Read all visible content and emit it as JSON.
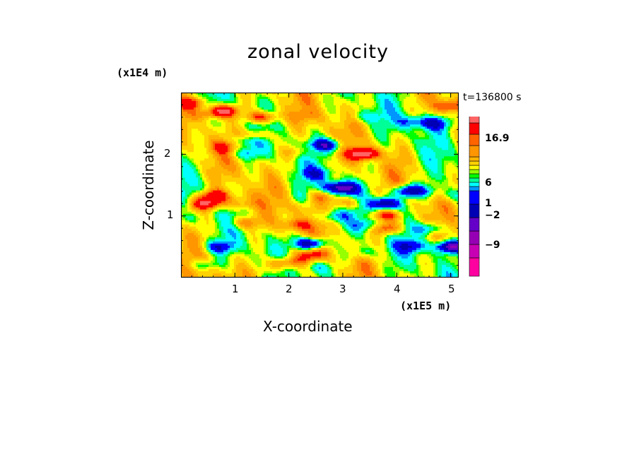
{
  "chart_data": {
    "type": "heatmap",
    "title": "zonal velocity",
    "xlabel": "X-coordinate",
    "ylabel": "Z-coordinate",
    "x_unit": "(x1E5 m)",
    "y_unit": "(x1E4 m)",
    "time_label": "t=136800 s",
    "xlim": [
      0,
      5.15
    ],
    "ylim": [
      0,
      3.0
    ],
    "x_ticks": [
      "1",
      "2",
      "3",
      "4",
      "5"
    ],
    "y_ticks": [
      "1",
      "2"
    ],
    "colorbar": {
      "tick_labels": [
        "16.9",
        "6",
        "1",
        "−2",
        "−9"
      ],
      "colors": [
        "#ff00a0",
        "#c800b4",
        "#9600b4",
        "#6400c8",
        "#0000b4",
        "#0000ff",
        "#0096ff",
        "#00ffff",
        "#00ff96",
        "#00ff00",
        "#96ff00",
        "#ffff00",
        "#ffd200",
        "#ffb400",
        "#ff9600",
        "#ff6400",
        "#ff0000",
        "#ff6464",
        "#ff9696",
        "#ffc8c8"
      ]
    },
    "features": [
      {
        "x": 0.45,
        "z": 1.2,
        "v": 8
      },
      {
        "x": 0.8,
        "z": 2.7,
        "v": 8
      },
      {
        "x": 1.5,
        "z": 2.6,
        "v": 7
      },
      {
        "x": 3.4,
        "z": 2.0,
        "v": 9
      },
      {
        "x": 2.4,
        "z": 0.55,
        "v": -10
      },
      {
        "x": 3.0,
        "z": 1.45,
        "v": -7
      },
      {
        "x": 3.8,
        "z": 1.2,
        "v": -10
      },
      {
        "x": 4.2,
        "z": 1.4,
        "v": -9
      },
      {
        "x": 5.0,
        "z": 0.5,
        "v": -11
      },
      {
        "x": 2.7,
        "z": 2.15,
        "v": -8
      },
      {
        "x": 4.7,
        "z": 2.5,
        "v": -6
      }
    ]
  }
}
